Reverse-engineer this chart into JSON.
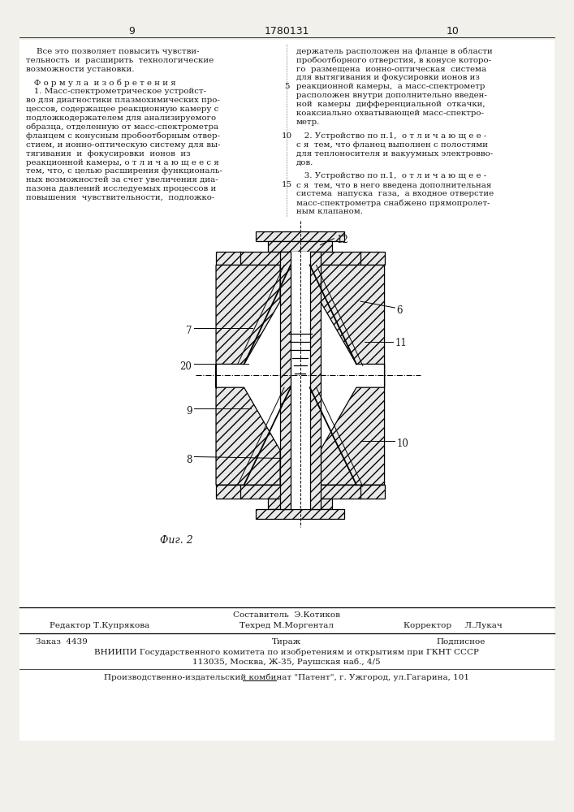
{
  "bg_color": "#f2f0eb",
  "text_color": "#1a1a1a",
  "page_num_left": "9",
  "page_num_center": "1780131",
  "page_num_right": "10"
}
